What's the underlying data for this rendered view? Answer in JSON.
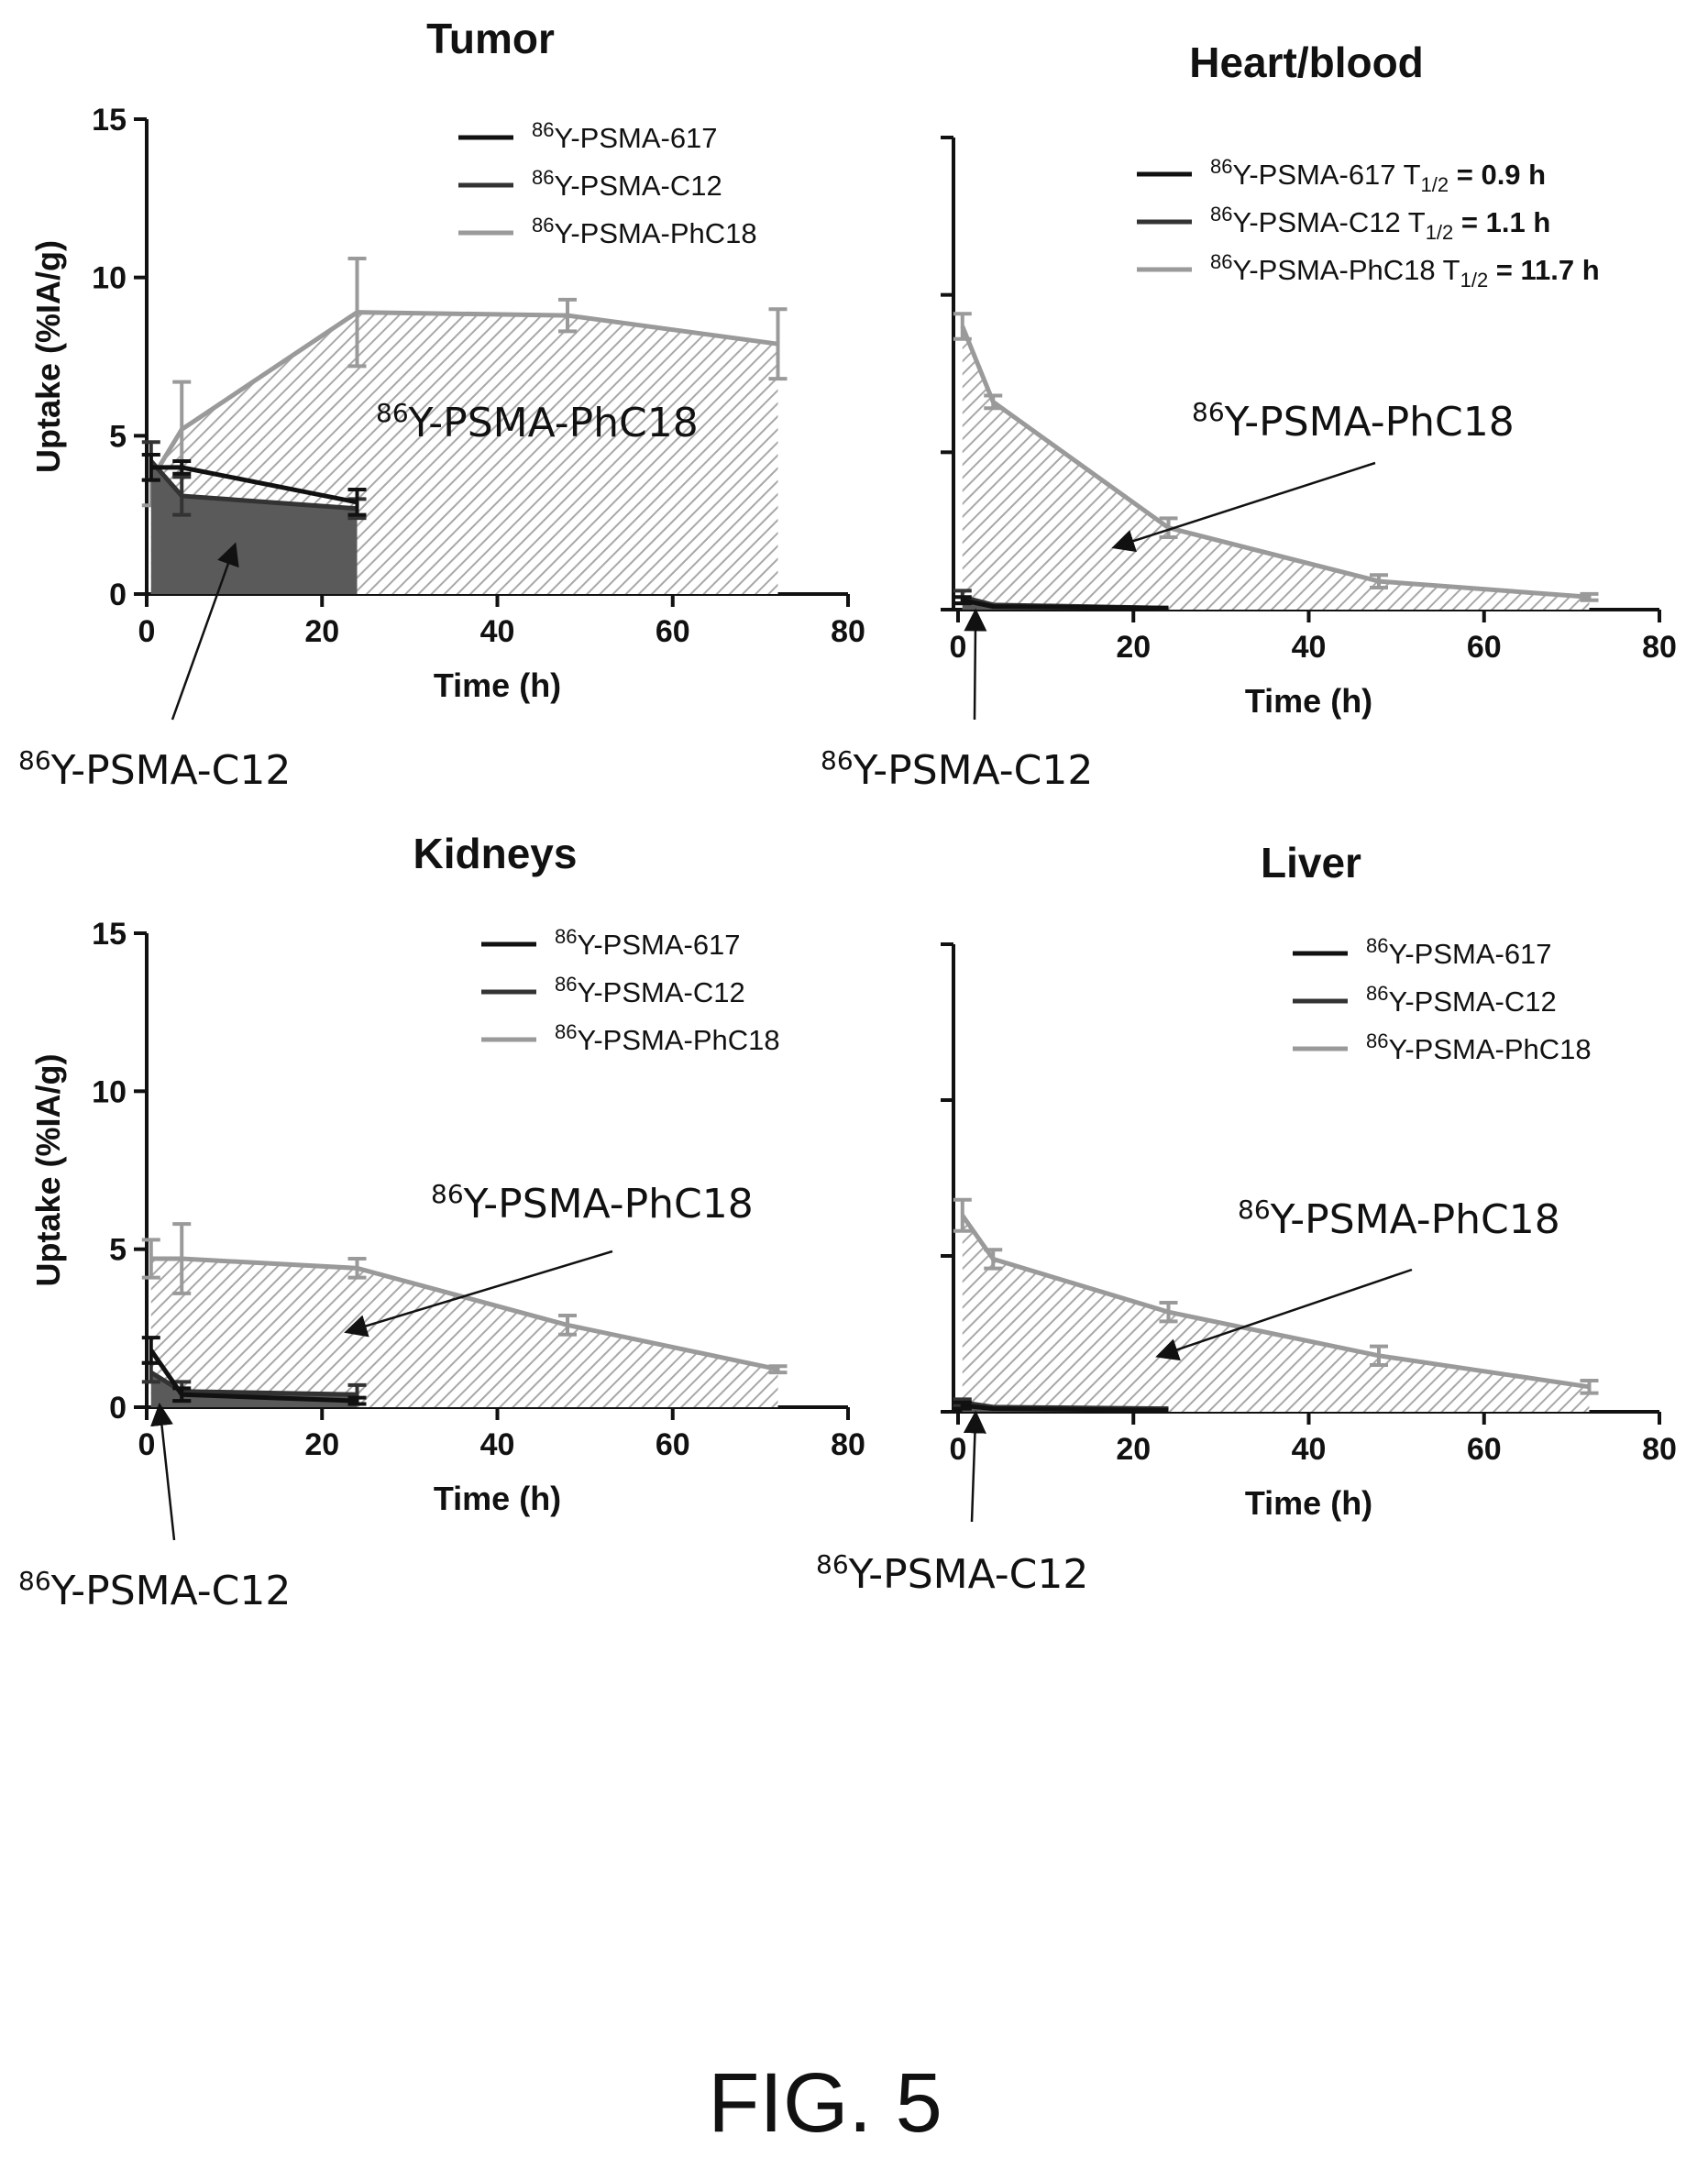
{
  "figure_label": "FIG. 5",
  "colors": {
    "psma_617": "#111111",
    "psma_c12": "#333333",
    "psma_phc18": "#9a9a9a",
    "c12_fill": "#5a5a5a",
    "phc18_hatch": "#a8a8a8"
  },
  "chart_data": [
    {
      "type": "area",
      "title": "Tumor",
      "xlabel": "Time (h)",
      "ylabel": "Uptake (%IA/g)",
      "xlim": [
        0,
        80
      ],
      "ylim": [
        0,
        15
      ],
      "xticks": [
        "0",
        "20",
        "40",
        "60",
        "80"
      ],
      "yticks": [
        "0",
        "5",
        "10",
        "15"
      ],
      "legend_position": "top-right",
      "legend": [
        {
          "sup": "86",
          "name": "Y-PSMA-617",
          "suffix": "",
          "value": ""
        },
        {
          "sup": "86",
          "name": "Y-PSMA-C12",
          "suffix": "",
          "value": ""
        },
        {
          "sup": "86",
          "name": "Y-PSMA-PhC18",
          "suffix": "",
          "value": ""
        }
      ],
      "series": [
        {
          "name": "86Y-PSMA-617",
          "x": [
            0.5,
            4,
            24
          ],
          "y": [
            4.0,
            4.0,
            2.9
          ],
          "err": [
            0.4,
            0.2,
            0.4
          ],
          "style": "line"
        },
        {
          "name": "86Y-PSMA-C12",
          "x": [
            0.5,
            4,
            24
          ],
          "y": [
            4.2,
            3.1,
            2.7
          ],
          "err": [
            0.6,
            0.6,
            0.3
          ],
          "style": "area-solid"
        },
        {
          "name": "86Y-PSMA-PhC18",
          "x": [
            0.5,
            4,
            24,
            48,
            72
          ],
          "y": [
            3.6,
            5.2,
            8.9,
            8.8,
            7.9
          ],
          "err": [
            0.8,
            1.5,
            1.7,
            0.5,
            1.1
          ],
          "style": "area-hatched"
        }
      ],
      "annotations": [
        {
          "sup": "86",
          "text": "Y-PSMA-PhC18",
          "arrow": false,
          "tx": 0,
          "ty": 0
        },
        {
          "sup": "86",
          "text": "Y-PSMA-C12",
          "arrow": true,
          "tx": 10,
          "ty": 1.5
        }
      ]
    },
    {
      "type": "area",
      "title": "Heart/blood",
      "xlabel": "Time (h)",
      "ylabel": "",
      "xlim": [
        0,
        80
      ],
      "ylim": [
        0,
        15
      ],
      "xticks": [
        "0",
        "20",
        "40",
        "60",
        "80"
      ],
      "yticks": [
        "",
        "",
        "",
        ""
      ],
      "legend_position": "top-right",
      "legend": [
        {
          "sup": "86",
          "name": "Y-PSMA-617 T",
          "suffix": "1/2",
          "value": " = 0.9 h"
        },
        {
          "sup": "86",
          "name": "Y-PSMA-C12 T",
          "suffix": "1/2",
          "value": " = 1.1 h"
        },
        {
          "sup": "86",
          "name": "Y-PSMA-PhC18 T",
          "suffix": "1/2",
          "value": " = 11.7 h"
        }
      ],
      "series": [
        {
          "name": "86Y-PSMA-617",
          "x": [
            0.5,
            4,
            24
          ],
          "y": [
            0.3,
            0.1,
            0.05
          ],
          "err": [
            0.1,
            0,
            0
          ],
          "style": "line"
        },
        {
          "name": "86Y-PSMA-C12",
          "x": [
            0.5,
            4,
            24
          ],
          "y": [
            0.4,
            0.15,
            0.05
          ],
          "err": [
            0.2,
            0,
            0
          ],
          "style": "area-solid"
        },
        {
          "name": "86Y-PSMA-PhC18",
          "x": [
            0.5,
            4,
            24,
            48,
            72
          ],
          "y": [
            9.0,
            6.6,
            2.6,
            0.9,
            0.4
          ],
          "err": [
            0.4,
            0.2,
            0.3,
            0.2,
            0.1
          ],
          "style": "area-hatched"
        }
      ],
      "annotations": [
        {
          "sup": "86",
          "text": "Y-PSMA-PhC18",
          "arrow": true,
          "tx": 18,
          "ty": 2.0
        },
        {
          "sup": "86",
          "text": "Y-PSMA-C12",
          "arrow": true,
          "tx": 2,
          "ty": -0.1
        }
      ]
    },
    {
      "type": "area",
      "title": "Kidneys",
      "xlabel": "Time (h)",
      "ylabel": "Uptake (%IA/g)",
      "xlim": [
        0,
        80
      ],
      "ylim": [
        0,
        15
      ],
      "xticks": [
        "0",
        "20",
        "40",
        "60",
        "80"
      ],
      "yticks": [
        "0",
        "5",
        "10",
        "15"
      ],
      "legend_position": "top-right",
      "legend": [
        {
          "sup": "86",
          "name": "Y-PSMA-617",
          "suffix": "",
          "value": ""
        },
        {
          "sup": "86",
          "name": "Y-PSMA-C12",
          "suffix": "",
          "value": ""
        },
        {
          "sup": "86",
          "name": "Y-PSMA-PhC18",
          "suffix": "",
          "value": ""
        }
      ],
      "series": [
        {
          "name": "86Y-PSMA-617",
          "x": [
            0.5,
            4,
            24
          ],
          "y": [
            1.8,
            0.4,
            0.2
          ],
          "err": [
            0.4,
            0.2,
            0.1
          ],
          "style": "line"
        },
        {
          "name": "86Y-PSMA-C12",
          "x": [
            0.5,
            4,
            24
          ],
          "y": [
            1.1,
            0.5,
            0.4
          ],
          "err": [
            0.3,
            0.3,
            0.3
          ],
          "style": "area-solid"
        },
        {
          "name": "86Y-PSMA-PhC18",
          "x": [
            0.5,
            4,
            24,
            48,
            72
          ],
          "y": [
            4.7,
            4.7,
            4.4,
            2.6,
            1.2
          ],
          "err": [
            0.6,
            1.1,
            0.3,
            0.3,
            0.1
          ],
          "style": "area-hatched"
        }
      ],
      "annotations": [
        {
          "sup": "86",
          "text": "Y-PSMA-PhC18",
          "arrow": true,
          "tx": 23,
          "ty": 2.4
        },
        {
          "sup": "86",
          "text": "Y-PSMA-C12",
          "arrow": true,
          "tx": 1.5,
          "ty": 0
        }
      ]
    },
    {
      "type": "area",
      "title": "Liver",
      "xlabel": "Time (h)",
      "ylabel": "",
      "xlim": [
        0,
        80
      ],
      "ylim": [
        0,
        15
      ],
      "xticks": [
        "0",
        "20",
        "40",
        "60",
        "80"
      ],
      "yticks": [
        "",
        "",
        "",
        ""
      ],
      "legend_position": "top-right",
      "legend": [
        {
          "sup": "86",
          "name": "Y-PSMA-617",
          "suffix": "",
          "value": ""
        },
        {
          "sup": "86",
          "name": "Y-PSMA-C12",
          "suffix": "",
          "value": ""
        },
        {
          "sup": "86",
          "name": "Y-PSMA-PhC18",
          "suffix": "",
          "value": ""
        }
      ],
      "series": [
        {
          "name": "86Y-PSMA-617",
          "x": [
            0.5,
            4,
            24
          ],
          "y": [
            0.2,
            0.1,
            0.05
          ],
          "err": [
            0.1,
            0,
            0
          ],
          "style": "line"
        },
        {
          "name": "86Y-PSMA-C12",
          "x": [
            0.5,
            4,
            24
          ],
          "y": [
            0.3,
            0.15,
            0.1
          ],
          "err": [
            0.1,
            0,
            0
          ],
          "style": "area-solid"
        },
        {
          "name": "86Y-PSMA-PhC18",
          "x": [
            0.5,
            4,
            24,
            48,
            72
          ],
          "y": [
            6.3,
            4.9,
            3.2,
            1.8,
            0.8
          ],
          "err": [
            0.5,
            0.3,
            0.3,
            0.3,
            0.2
          ],
          "style": "area-hatched"
        }
      ],
      "annotations": [
        {
          "sup": "86",
          "text": "Y-PSMA-PhC18",
          "arrow": true,
          "tx": 23,
          "ty": 1.8
        },
        {
          "sup": "86",
          "text": "Y-PSMA-C12",
          "arrow": true,
          "tx": 2,
          "ty": -0.1
        }
      ]
    }
  ]
}
